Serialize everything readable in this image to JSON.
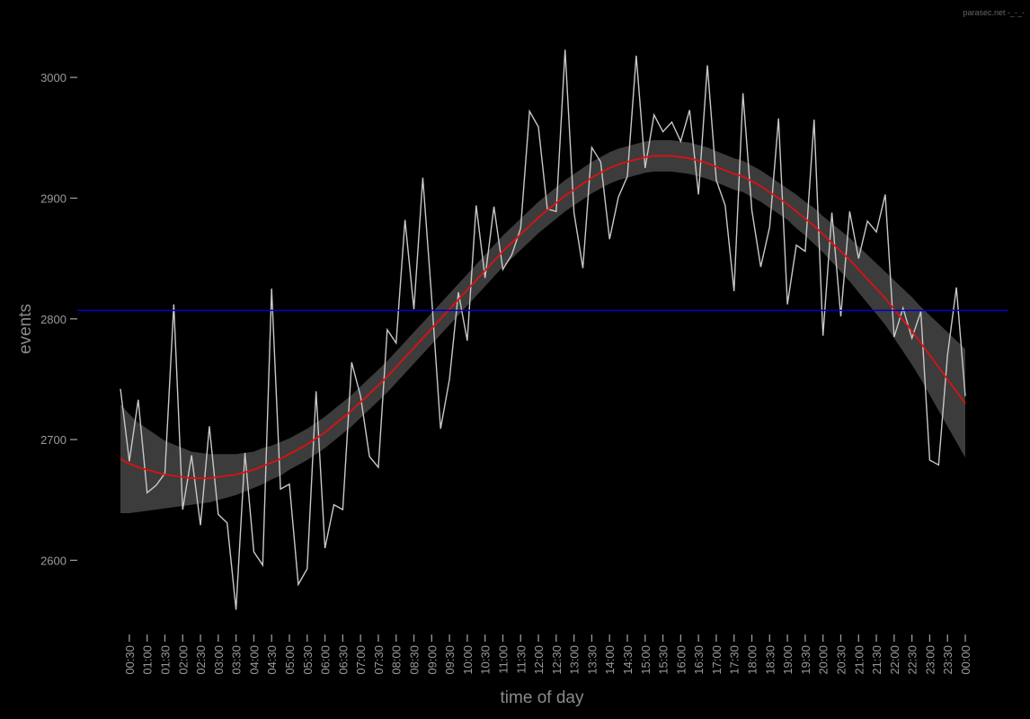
{
  "chart_data": {
    "type": "line",
    "watermark": "parasec.net -_-_-",
    "xlabel": "time of day",
    "ylabel": "events",
    "categories": [
      null,
      "00:30",
      null,
      "01:00",
      null,
      "01:30",
      null,
      "02:00",
      null,
      "02:30",
      null,
      "03:00",
      null,
      "03:30",
      null,
      "04:00",
      null,
      "04:30",
      null,
      "05:00",
      null,
      "05:30",
      null,
      "06:00",
      null,
      "06:30",
      null,
      "07:00",
      null,
      "07:30",
      null,
      "08:00",
      null,
      "08:30",
      null,
      "09:00",
      null,
      "09:30",
      null,
      "10:00",
      null,
      "10:30",
      null,
      "11:00",
      null,
      "11:30",
      null,
      "12:00",
      null,
      "12:30",
      null,
      "13:00",
      null,
      "13:30",
      null,
      "14:00",
      null,
      "14:30",
      null,
      "15:00",
      null,
      "15:30",
      null,
      "16:00",
      null,
      "16:30",
      null,
      "17:00",
      null,
      "17:30",
      null,
      "18:00",
      null,
      "18:30",
      null,
      "19:00",
      null,
      "19:30",
      null,
      "20:00",
      null,
      "20:30",
      null,
      "21:00",
      null,
      "21:30",
      null,
      "22:00",
      null,
      "22:30",
      null,
      "23:00",
      null,
      "23:30",
      null,
      "00:00"
    ],
    "series": [
      {
        "color": "#c8c8c8",
        "values": [
          2742,
          2682,
          2733,
          2656,
          2662,
          2672,
          2812,
          2642,
          2687,
          2629,
          2711,
          2638,
          2631,
          2559,
          2689,
          2607,
          2596,
          2825,
          2659,
          2663,
          2580,
          2593,
          2740,
          2610,
          2646,
          2642,
          2764,
          2736,
          2686,
          2677,
          2791,
          2780,
          2882,
          2808,
          2917,
          2817,
          2709,
          2750,
          2822,
          2782,
          2894,
          2834,
          2893,
          2841,
          2853,
          2875,
          2972,
          2959,
          2891,
          2889,
          3023,
          2888,
          2842,
          2942,
          2930,
          2866,
          2901,
          2918,
          3018,
          2925,
          2969,
          2955,
          2963,
          2947,
          2973,
          2903,
          3010,
          2915,
          2894,
          2823,
          2987,
          2890,
          2843,
          2876,
          2966,
          2812,
          2861,
          2856,
          2965,
          2786,
          2888,
          2802,
          2889,
          2850,
          2881,
          2872,
          2903,
          2785,
          2809,
          2784,
          2806,
          2683,
          2679,
          2770,
          2826,
          2736
        ]
      },
      {
        "color": "#dd1111",
        "band_color": "#3c3c3c",
        "values": [
          2684,
          2680,
          2677,
          2675,
          2673,
          2671,
          2670,
          2669,
          2668,
          2668,
          2668,
          2669,
          2670,
          2671,
          2673,
          2675,
          2678,
          2681,
          2684,
          2688,
          2692,
          2696,
          2701,
          2706,
          2712,
          2718,
          2724,
          2731,
          2738,
          2745,
          2752,
          2760,
          2768,
          2776,
          2784,
          2792,
          2800,
          2808,
          2816,
          2824,
          2832,
          2840,
          2848,
          2856,
          2863,
          2870,
          2877,
          2884,
          2890,
          2896,
          2902,
          2907,
          2912,
          2917,
          2921,
          2925,
          2928,
          2930,
          2932,
          2934,
          2935,
          2935,
          2935,
          2934,
          2933,
          2931,
          2929,
          2926,
          2923,
          2920,
          2918,
          2914,
          2910,
          2905,
          2900,
          2895,
          2889,
          2883,
          2877,
          2870,
          2863,
          2856,
          2849,
          2841,
          2833,
          2825,
          2817,
          2808,
          2799,
          2790,
          2780,
          2770,
          2760,
          2750,
          2740,
          2730
        ],
        "errors": [
          45,
          41,
          37,
          34,
          31,
          28,
          26,
          24,
          22,
          21,
          20,
          19,
          18,
          17,
          16,
          15,
          15,
          14,
          14,
          13,
          13,
          13,
          13,
          13,
          13,
          13,
          13,
          13,
          13,
          13,
          13,
          13,
          13,
          13,
          13,
          13,
          13,
          13,
          13,
          13,
          13,
          13,
          13,
          13,
          13,
          13,
          13,
          13,
          13,
          13,
          13,
          13,
          13,
          13,
          13,
          13,
          13,
          13,
          13,
          13,
          13,
          13,
          13,
          13,
          13,
          13,
          13,
          13,
          13,
          13,
          13,
          13,
          13,
          13,
          13,
          13,
          14,
          14,
          15,
          15,
          16,
          17,
          18,
          19,
          20,
          21,
          22,
          24,
          26,
          28,
          30,
          33,
          36,
          39,
          42,
          45
        ]
      }
    ],
    "hline": {
      "value": 2807,
      "color": "#0000cc"
    },
    "ylim": [
      2540,
      3050
    ],
    "yticks": [
      2600,
      2700,
      2800,
      2900,
      3000
    ],
    "grid": false
  }
}
